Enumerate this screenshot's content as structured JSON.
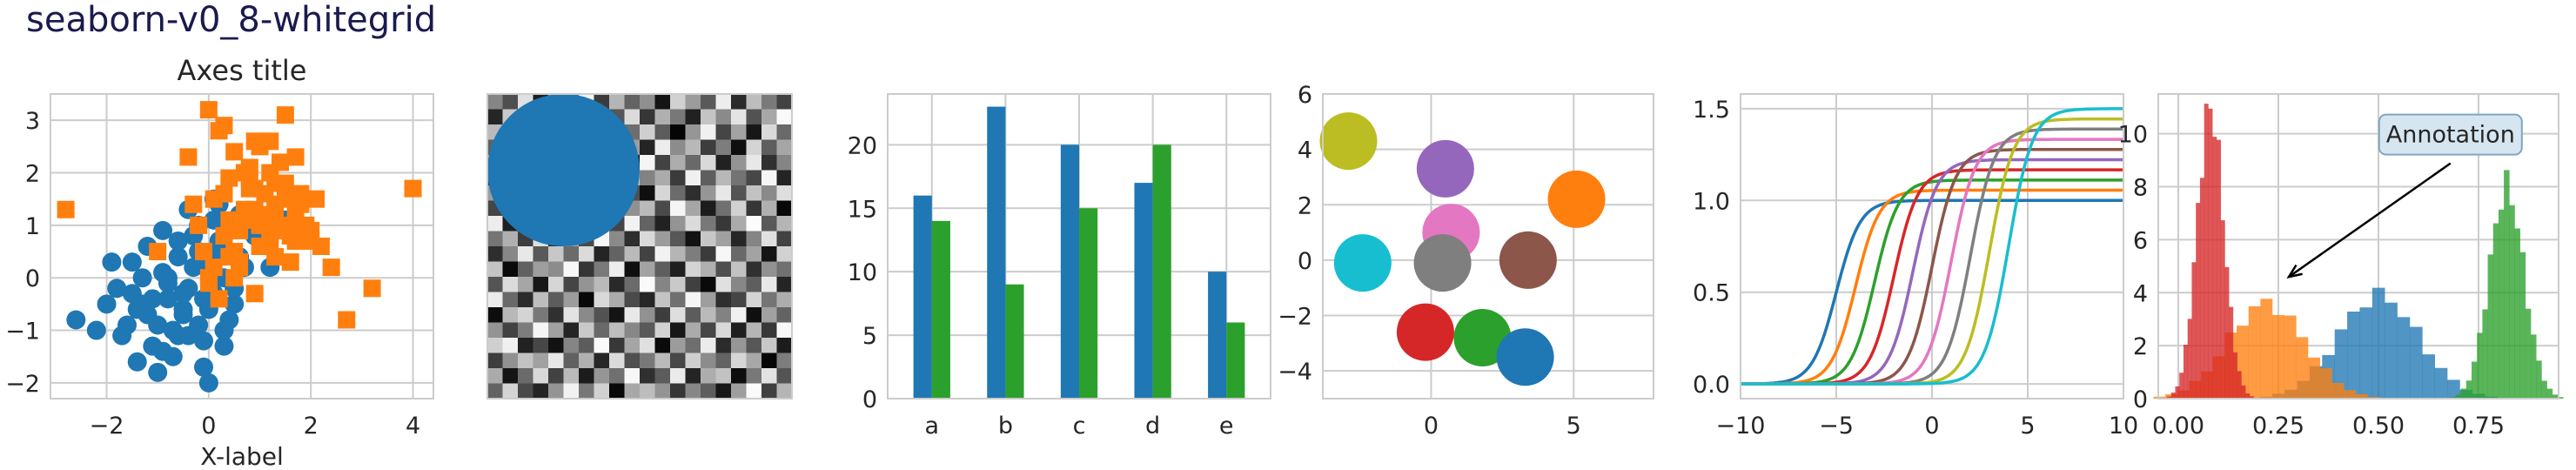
{
  "figure": {
    "suptitle": "seaborn-v0_8-whitegrid"
  },
  "colors": {
    "tab10": [
      "#1f77b4",
      "#ff7f0e",
      "#2ca02c",
      "#d62728",
      "#9467bd",
      "#8c564b",
      "#e377c2",
      "#7f7f7f",
      "#bcbd22",
      "#17becf"
    ],
    "grid": "#cccccc",
    "spine": "#cccccc"
  },
  "chart_data": [
    {
      "type": "scatter",
      "title": "Axes title",
      "xlabel": "X-label",
      "ylabel": "",
      "xlim": [
        -3.1,
        4.4
      ],
      "ylim": [
        -2.3,
        3.5
      ],
      "xticks": [
        -2,
        0,
        2,
        4
      ],
      "yticks": [
        -2,
        -1,
        0,
        1,
        2,
        3
      ],
      "grid": true,
      "series": [
        {
          "marker": "circle",
          "color": "#1f77b4",
          "x": [
            -2.6,
            -2.0,
            -1.7,
            -1.5,
            -1.4,
            -1.3,
            -1.2,
            -1.1,
            -1.0,
            -0.9,
            -0.8,
            -0.7,
            -0.6,
            -0.5,
            -0.4,
            -0.3,
            -0.2,
            -0.1,
            0.0,
            0.1,
            0.2,
            0.3,
            0.4,
            0.5,
            0.6,
            0.7,
            -1.8,
            -1.6,
            -1.2,
            -1.0,
            -0.8,
            -0.6,
            -0.4,
            -0.2,
            0.0,
            0.2,
            0.4,
            -1.5,
            -1.1,
            -0.7,
            -0.3,
            0.1,
            0.5,
            -0.9,
            -0.5,
            0.0,
            0.3,
            -0.6,
            -0.2,
            0.2,
            0.6,
            0.9,
            -1.3,
            -0.8,
            -0.4,
            0.1,
            -0.1,
            0.3,
            1.2,
            0.5,
            1.5,
            -2.2,
            -1.9,
            -1.4,
            -0.9,
            -0.5,
            -0.1
          ],
          "y": [
            -0.8,
            -0.5,
            -1.1,
            -0.3,
            -1.6,
            0.0,
            -0.7,
            -1.3,
            -0.9,
            0.1,
            -0.4,
            -1.0,
            0.4,
            -0.6,
            -0.2,
            0.8,
            0.5,
            -1.2,
            0.3,
            -0.3,
            1.4,
            0.0,
            0.9,
            -0.5,
            1.2,
            0.2,
            -0.2,
            -0.9,
            0.6,
            -1.8,
            -0.1,
            0.7,
            -1.1,
            1.0,
            -0.6,
            0.5,
            -0.8,
            0.3,
            -0.4,
            -1.5,
            0.2,
            1.1,
            -0.2,
            0.9,
            -0.7,
            -2.0,
            -1.3,
            -1.1,
            -0.9,
            0.7,
            0.4,
            0.8,
            -0.5,
            0.0,
            1.3,
            1.5,
            -0.4,
            -1.0,
            0.2,
            1.0,
            1.1,
            -1.0,
            0.3,
            -0.6,
            -1.4,
            -0.3,
            -1.7
          ]
        },
        {
          "marker": "square",
          "color": "#ff7f0e",
          "x": [
            -2.8,
            -1.0,
            -0.4,
            -0.2,
            0.0,
            0.1,
            0.2,
            0.3,
            0.4,
            0.5,
            0.6,
            0.7,
            0.8,
            0.9,
            1.0,
            1.1,
            1.2,
            1.3,
            1.4,
            1.5,
            1.6,
            1.7,
            1.8,
            1.9,
            2.0,
            2.1,
            2.2,
            2.4,
            2.7,
            3.2,
            4.0,
            -0.3,
            0.0,
            0.3,
            0.5,
            0.8,
            1.0,
            1.2,
            1.4,
            1.6,
            1.8,
            2.0,
            0.1,
            0.4,
            0.7,
            0.9,
            1.1,
            1.3,
            1.5,
            1.7,
            0.6,
            0.9,
            1.2,
            1.5,
            1.7,
            0.2,
            0.5,
            0.8,
            1.0,
            1.3,
            1.6,
            0.0,
            0.4,
            0.7,
            1.0,
            1.3,
            -0.1,
            0.3,
            0.6,
            0.9,
            1.2
          ],
          "y": [
            1.3,
            0.5,
            2.3,
            1.0,
            3.2,
            1.5,
            2.8,
            0.8,
            1.9,
            2.4,
            0.2,
            1.3,
            1.7,
            2.6,
            0.6,
            1.1,
            2.0,
            1.4,
            0.9,
            1.8,
            0.3,
            1.2,
            1.6,
            1.0,
            0.7,
            1.5,
            0.6,
            0.2,
            -0.8,
            -0.2,
            1.7,
            1.4,
            0.0,
            2.9,
            0.5,
            1.9,
            1.2,
            0.8,
            2.2,
            1.0,
            1.4,
            0.9,
            0.2,
            1.1,
            2.0,
            -0.3,
            1.6,
            0.4,
            3.1,
            2.3,
            0.9,
            1.3,
            0.6,
            1.5,
            0.7,
            -0.4,
            0.0,
            2.1,
            1.0,
            1.8,
            0.8,
            -0.1,
            0.4,
            1.1,
            2.5,
            1.2,
            0.5,
            1.6,
            0.3,
            1.7,
            2.6
          ]
        }
      ]
    },
    {
      "type": "heatmap",
      "title": "",
      "grid_size": [
        20,
        20
      ],
      "colormap": "gray",
      "circle": {
        "cx": 4.5,
        "cy": 4.5,
        "r": 5,
        "color": "#1f77b4"
      },
      "values": [
        [
          0.52,
          0.31,
          0.88,
          0.12,
          0.67,
          0.44,
          0.95,
          0.23,
          0.71,
          0.39,
          0.56,
          0.08,
          0.82,
          0.61,
          0.35,
          0.93,
          0.17,
          0.74,
          0.48,
          0.26
        ],
        [
          0.15,
          0.79,
          0.42,
          0.63,
          0.28,
          0.91,
          0.05,
          0.58,
          0.34,
          0.86,
          0.21,
          0.69,
          0.47,
          0.13,
          0.77,
          0.54,
          0.89,
          0.32,
          0.66,
          0.98
        ],
        [
          0.73,
          0.46,
          0.19,
          0.84,
          0.57,
          0.11,
          0.68,
          0.92,
          0.25,
          0.43,
          0.81,
          0.36,
          0.02,
          0.59,
          0.94,
          0.27,
          0.64,
          0.09,
          0.85,
          0.41
        ],
        [
          0.38,
          0.97,
          0.61,
          0.29,
          0.03,
          0.76,
          0.45,
          0.18,
          0.87,
          0.62,
          0.14,
          0.93,
          0.55,
          0.72,
          0.24,
          0.49,
          0.06,
          0.83,
          0.37,
          0.65
        ],
        [
          0.84,
          0.22,
          0.53,
          0.77,
          0.94,
          0.33,
          0.16,
          0.71,
          0.48,
          0.07,
          0.96,
          0.26,
          0.68,
          0.41,
          0.85,
          0.13,
          0.58,
          0.91,
          0.19,
          0.52
        ],
        [
          0.09,
          0.64,
          0.87,
          0.41,
          0.25,
          0.58,
          0.83,
          0.36,
          0.12,
          0.79,
          0.51,
          0.67,
          0.23,
          0.94,
          0.37,
          0.72,
          0.45,
          0.28,
          0.96,
          0.14
        ],
        [
          0.61,
          0.35,
          0.02,
          0.95,
          0.72,
          0.19,
          0.47,
          0.89,
          0.63,
          0.31,
          0.06,
          0.84,
          0.42,
          0.18,
          0.59,
          0.91,
          0.33,
          0.76,
          0.54,
          0.87
        ],
        [
          0.27,
          0.88,
          0.74,
          0.16,
          0.49,
          0.92,
          0.38,
          0.05,
          0.81,
          0.57,
          0.73,
          0.29,
          0.96,
          0.65,
          0.11,
          0.44,
          0.82,
          0.21,
          0.69,
          0.03
        ],
        [
          0.93,
          0.12,
          0.56,
          0.68,
          0.31,
          0.04,
          0.75,
          0.62,
          0.27,
          0.95,
          0.39,
          0.13,
          0.58,
          0.86,
          0.47,
          0.22,
          0.67,
          0.99,
          0.35,
          0.71
        ],
        [
          0.46,
          0.69,
          0.24,
          0.87,
          0.13,
          0.66,
          0.29,
          0.97,
          0.54,
          0.18,
          0.85,
          0.61,
          0.34,
          0.07,
          0.78,
          0.63,
          0.15,
          0.52,
          0.88,
          0.26
        ],
        [
          0.18,
          0.53,
          0.91,
          0.35,
          0.78,
          0.42,
          0.86,
          0.14,
          0.39,
          0.73,
          0.26,
          0.95,
          0.71,
          0.49,
          0.23,
          0.97,
          0.41,
          0.64,
          0.08,
          0.82
        ],
        [
          0.77,
          0.04,
          0.38,
          0.62,
          0.55,
          0.97,
          0.21,
          0.48,
          0.93,
          0.06,
          0.64,
          0.37,
          0.12,
          0.83,
          0.69,
          0.31,
          0.76,
          0.19,
          0.57,
          0.44
        ],
        [
          0.33,
          0.86,
          0.65,
          0.09,
          0.84,
          0.27,
          0.58,
          0.73,
          0.16,
          0.42,
          0.98,
          0.52,
          0.79,
          0.25,
          0.04,
          0.88,
          0.53,
          0.37,
          0.91,
          0.14
        ],
        [
          0.92,
          0.41,
          0.17,
          0.74,
          0.36,
          0.61,
          0.03,
          0.85,
          0.67,
          0.29,
          0.15,
          0.77,
          0.44,
          0.96,
          0.62,
          0.18,
          0.27,
          0.83,
          0.46,
          0.68
        ],
        [
          0.05,
          0.72,
          0.83,
          0.47,
          0.19,
          0.89,
          0.54,
          0.32,
          0.08,
          0.91,
          0.57,
          0.24,
          0.87,
          0.36,
          0.73,
          0.51,
          0.94,
          0.06,
          0.63,
          0.39
        ],
        [
          0.58,
          0.26,
          0.49,
          0.96,
          0.63,
          0.14,
          0.79,
          0.41,
          0.74,
          0.53,
          0.35,
          0.82,
          0.09,
          0.67,
          0.28,
          0.85,
          0.12,
          0.71,
          0.22,
          0.97
        ],
        [
          0.81,
          0.94,
          0.13,
          0.28,
          0.07,
          0.52,
          0.36,
          0.98,
          0.22,
          0.65,
          0.88,
          0.04,
          0.61,
          0.43,
          0.92,
          0.17,
          0.59,
          0.34,
          0.78,
          0.11
        ],
        [
          0.24,
          0.57,
          0.76,
          0.63,
          0.91,
          0.38,
          0.69,
          0.15,
          0.86,
          0.31,
          0.47,
          0.73,
          0.28,
          0.81,
          0.55,
          0.39,
          0.84,
          0.66,
          0.02,
          0.49
        ],
        [
          0.67,
          0.08,
          0.42,
          0.85,
          0.26,
          0.73,
          0.11,
          0.59,
          0.44,
          0.97,
          0.19,
          0.36,
          0.92,
          0.14,
          0.68,
          0.76,
          0.05,
          0.47,
          0.89,
          0.33
        ],
        [
          0.39,
          0.83,
          0.29,
          0.14,
          0.58,
          0.95,
          0.47,
          0.82,
          0.03,
          0.66,
          0.74,
          0.58,
          0.21,
          0.53,
          0.37,
          0.09,
          0.62,
          0.98,
          0.25,
          0.71
        ]
      ]
    },
    {
      "type": "bar",
      "title": "",
      "categories": [
        "a",
        "b",
        "c",
        "d",
        "e"
      ],
      "series": [
        {
          "color": "#1f77b4",
          "values": [
            16,
            23,
            20,
            17,
            10
          ]
        },
        {
          "color": "#2ca02c",
          "values": [
            14,
            9,
            15,
            20,
            6
          ]
        }
      ],
      "ylim": [
        0,
        24
      ],
      "yticks": [
        0,
        5,
        10,
        15,
        20
      ],
      "grid": true
    },
    {
      "type": "scatter",
      "title": "",
      "xlim": [
        -3.8,
        7.8
      ],
      "ylim": [
        -5.0,
        6.0
      ],
      "xticks": [
        0,
        5
      ],
      "yticks": [
        -4,
        -2,
        0,
        2,
        4,
        6
      ],
      "grid": true,
      "points": [
        {
          "x": 0.5,
          "y": 3.3,
          "color": "#9467bd"
        },
        {
          "x": 5.1,
          "y": 2.2,
          "color": "#ff7f0e"
        },
        {
          "x": -2.9,
          "y": 4.3,
          "color": "#bcbd22"
        },
        {
          "x": 0.7,
          "y": 1.0,
          "color": "#e377c2"
        },
        {
          "x": -2.4,
          "y": -0.1,
          "color": "#17becf"
        },
        {
          "x": 0.4,
          "y": -0.1,
          "color": "#7f7f7f"
        },
        {
          "x": 3.4,
          "y": 0.0,
          "color": "#8c564b"
        },
        {
          "x": -0.2,
          "y": -2.6,
          "color": "#d62728"
        },
        {
          "x": 1.8,
          "y": -2.8,
          "color": "#2ca02c"
        },
        {
          "x": 3.3,
          "y": -3.5,
          "color": "#1f77b4"
        }
      ]
    },
    {
      "type": "line",
      "title": "",
      "xlim": [
        -10,
        10
      ],
      "ylim": [
        -0.08,
        1.58
      ],
      "xticks": [
        -10,
        -5,
        0,
        5,
        10
      ],
      "yticks": [
        0.0,
        0.5,
        1.0,
        1.5
      ],
      "grid": true,
      "series": [
        {
          "color": "#1f77b4",
          "shift": -5,
          "amplitude": 1.0
        },
        {
          "color": "#ff7f0e",
          "shift": -4,
          "amplitude": 1.056
        },
        {
          "color": "#2ca02c",
          "shift": -3,
          "amplitude": 1.111
        },
        {
          "color": "#d62728",
          "shift": -2,
          "amplitude": 1.167
        },
        {
          "color": "#9467bd",
          "shift": -1,
          "amplitude": 1.222
        },
        {
          "color": "#8c564b",
          "shift": 0,
          "amplitude": 1.278
        },
        {
          "color": "#e377c2",
          "shift": 1,
          "amplitude": 1.333
        },
        {
          "color": "#7f7f7f",
          "shift": 2,
          "amplitude": 1.389
        },
        {
          "color": "#bcbd22",
          "shift": 3,
          "amplitude": 1.444
        },
        {
          "color": "#17becf",
          "shift": 4,
          "amplitude": 1.5
        }
      ]
    },
    {
      "type": "histogram",
      "title": "",
      "xlim": [
        -0.05,
        0.95
      ],
      "ylim": [
        0,
        11.5
      ],
      "xticks": [
        0.0,
        0.25,
        0.5,
        0.75
      ],
      "yticks": [
        0,
        2,
        4,
        6,
        8,
        10
      ],
      "grid": true,
      "annotation": {
        "text": "Annotation",
        "text_x": 0.68,
        "text_y": 10.0,
        "arrow_x": 0.25,
        "arrow_y": 4.3
      },
      "series": [
        {
          "color": "#1f77b4",
          "mean": 0.5,
          "sd": 0.1,
          "peak": 3.9
        },
        {
          "color": "#ff7f0e",
          "mean": 0.22,
          "sd": 0.095,
          "peak": 3.6
        },
        {
          "color": "#2ca02c",
          "mean": 0.82,
          "sd": 0.043,
          "peak": 8.0
        },
        {
          "color": "#d62728",
          "mean": 0.08,
          "sd": 0.033,
          "peak": 11.0
        }
      ]
    }
  ]
}
